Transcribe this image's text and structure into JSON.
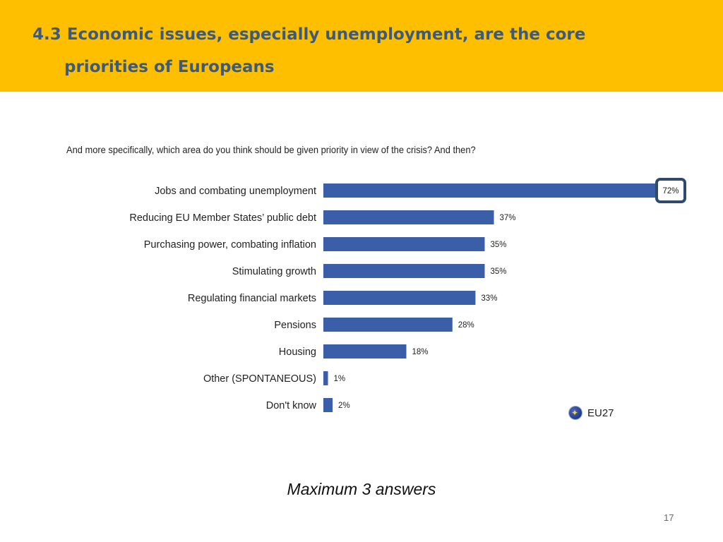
{
  "header": {
    "title_line1": "4.3 Economic issues, especially unemployment, are the core",
    "title_line2": "priorities of Europeans",
    "background": "#fdbf00",
    "title_color": "#3d5a7a"
  },
  "question": "And more specifically, which area do you think should be given priority in view of the crisis? And then?",
  "legend": {
    "label": "EU27",
    "icon": "eu-flag-icon"
  },
  "footnote": "Maximum 3 answers",
  "page_number": "17",
  "chart_data": {
    "type": "bar",
    "orientation": "horizontal",
    "title": "And more specifically, which area do you think should be given priority in view of the crisis? And then?",
    "categories": [
      "Jobs and combating unemployment",
      "Reducing EU Member States’ public debt",
      "Purchasing power, combating inflation",
      "Stimulating growth",
      "Regulating financial markets",
      "Pensions",
      "Housing",
      "Other (SPONTANEOUS)",
      "Don't know"
    ],
    "series": [
      {
        "name": "EU27",
        "values": [
          72,
          37,
          35,
          35,
          33,
          28,
          18,
          1,
          2
        ],
        "color": "#3a5ea8"
      }
    ],
    "value_labels": [
      "72%",
      "37%",
      "35%",
      "35%",
      "33%",
      "28%",
      "18%",
      "1%",
      "2%"
    ],
    "highlighted_category": "Jobs and combating unemployment",
    "highlight_color": "#2e4a6e",
    "xlim": [
      0,
      72
    ],
    "unit": "%",
    "grid": false,
    "legend_position": "bottom-right"
  }
}
